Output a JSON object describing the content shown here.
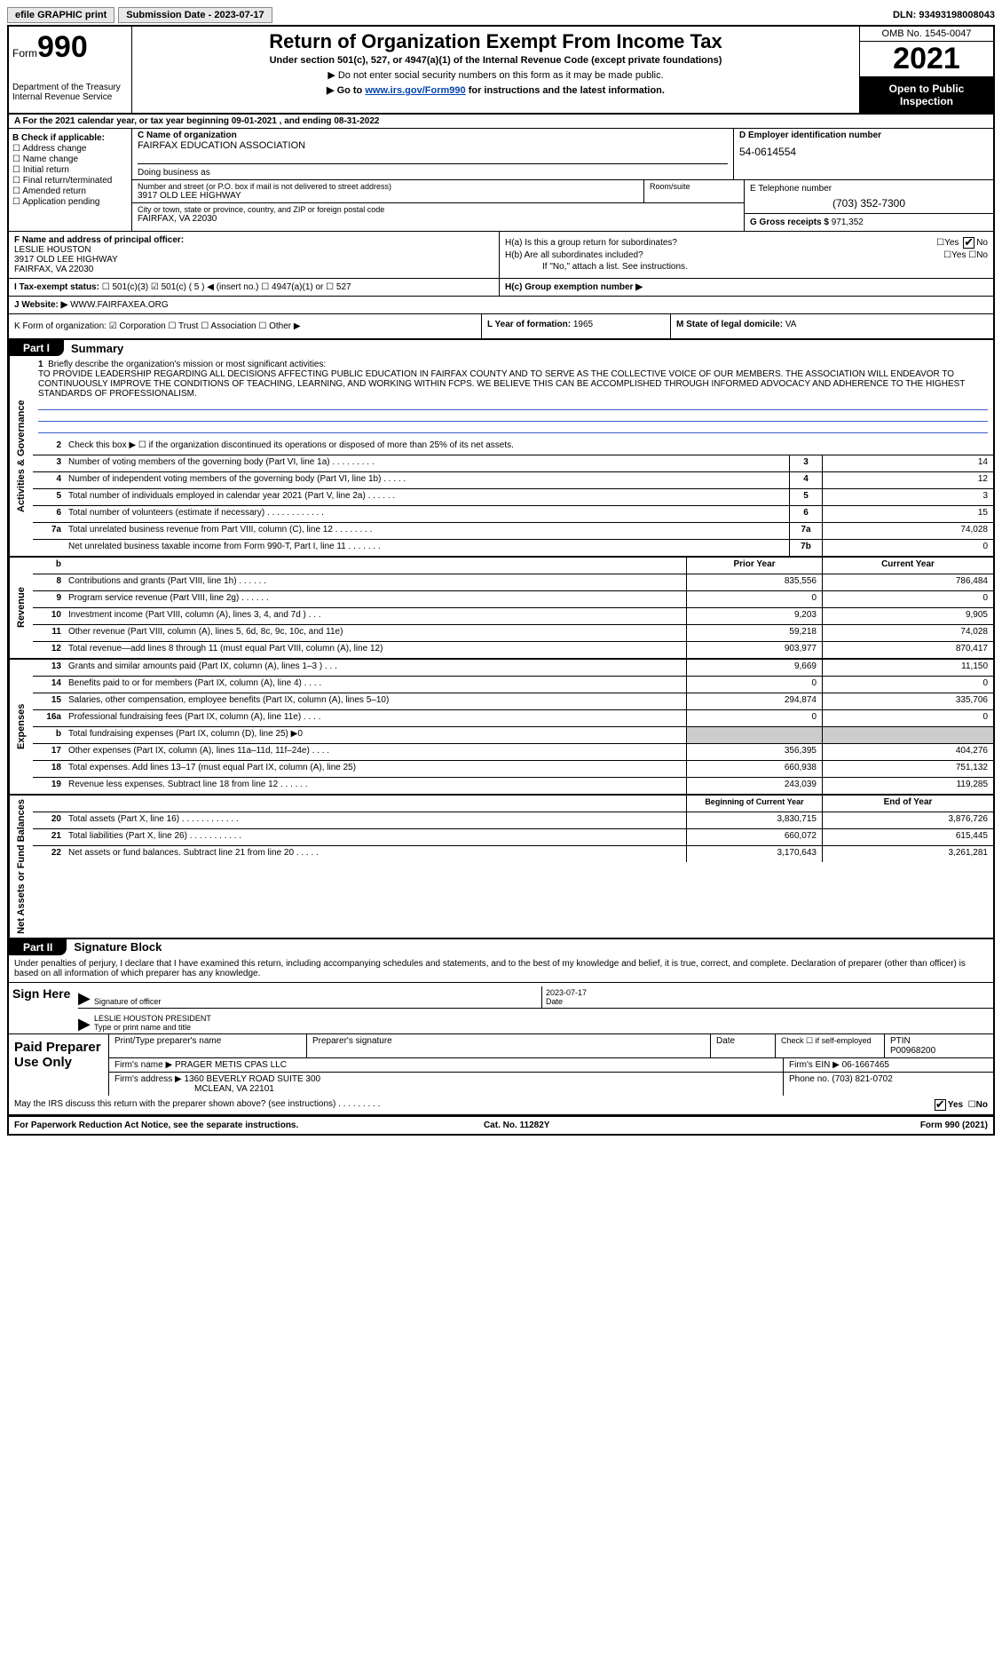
{
  "topbar": {
    "efile": "efile GRAPHIC print",
    "sub_label": "Submission Date - ",
    "sub_date": "2023-07-17",
    "dln_label": "DLN: ",
    "dln": "93493198008043"
  },
  "header": {
    "form_word": "Form",
    "form_num": "990",
    "dept": "Department of the Treasury\nInternal Revenue Service",
    "title": "Return of Organization Exempt From Income Tax",
    "sub": "Under section 501(c), 527, or 4947(a)(1) of the Internal Revenue Code (except private foundations)",
    "note1": "▶ Do not enter social security numbers on this form as it may be made public.",
    "note2_pre": "▶ Go to ",
    "note2_link": "www.irs.gov/Form990",
    "note2_post": " for instructions and the latest information.",
    "omb": "OMB No. 1545-0047",
    "year": "2021",
    "open": "Open to Public Inspection"
  },
  "rowA": "A For the 2021 calendar year, or tax year beginning 09-01-2021    , and ending 08-31-2022",
  "B": {
    "hdr": "B Check if applicable:",
    "items": [
      "☐ Address change",
      "☐ Name change",
      "☐ Initial return",
      "☐ Final return/terminated",
      "☐ Amended return",
      "☐ Application pending"
    ]
  },
  "C": {
    "name_lbl": "C Name of organization",
    "name": "FAIRFAX EDUCATION ASSOCIATION",
    "dba_lbl": "Doing business as",
    "addr_lbl": "Number and street (or P.O. box if mail is not delivered to street address)",
    "addr": "3917 OLD LEE HIGHWAY",
    "room_lbl": "Room/suite",
    "city_lbl": "City or town, state or province, country, and ZIP or foreign postal code",
    "city": "FAIRFAX, VA  22030"
  },
  "D": {
    "lbl": "D Employer identification number",
    "val": "54-0614554"
  },
  "E": {
    "lbl": "E Telephone number",
    "val": "(703) 352-7300"
  },
  "G": {
    "lbl": "G Gross receipts $ ",
    "val": "971,352"
  },
  "F": {
    "lbl": "F  Name and address of principal officer:",
    "name": "LESLIE HOUSTON",
    "addr1": "3917 OLD LEE HIGHWAY",
    "addr2": "FAIRFAX, VA  22030"
  },
  "H": {
    "a": "H(a)  Is this a group return for subordinates?",
    "b": "H(b)  Are all subordinates included?",
    "b_note": "If \"No,\" attach a list. See instructions.",
    "c": "H(c)  Group exemption number ▶",
    "yes": "Yes",
    "no": "No"
  },
  "I": {
    "lbl": "I    Tax-exempt status:",
    "opts": "☐ 501(c)(3)   ☑ 501(c) ( 5 ) ◀ (insert no.)   ☐ 4947(a)(1) or   ☐ 527"
  },
  "J": {
    "lbl": "J   Website: ▶ ",
    "val": "WWW.FAIRFAXEA.ORG"
  },
  "K": {
    "lbl": "K Form of organization:  ☑ Corporation  ☐ Trust  ☐ Association  ☐ Other ▶"
  },
  "L": {
    "lbl": "L Year of formation: ",
    "val": "1965"
  },
  "M": {
    "lbl": "M State of legal domicile: ",
    "val": "VA"
  },
  "part1": {
    "tab": "Part I",
    "title": "Summary"
  },
  "mission": {
    "num": "1",
    "lbl": "Briefly describe the organization's mission or most significant activities:",
    "text": "TO PROVIDE LEADERSHIP REGARDING ALL DECISIONS AFFECTING PUBLIC EDUCATION IN FAIRFAX COUNTY AND TO SERVE AS THE COLLECTIVE VOICE OF OUR MEMBERS. THE ASSOCIATION WILL ENDEAVOR TO CONTINUOUSLY IMPROVE THE CONDITIONS OF TEACHING, LEARNING, AND WORKING WITHIN FCPS. WE BELIEVE THIS CAN BE ACCOMPLISHED THROUGH INFORMED ADVOCACY AND ADHERENCE TO THE HIGHEST STANDARDS OF PROFESSIONALISM."
  },
  "gov_lines": [
    {
      "n": "2",
      "t": "Check this box ▶ ☐  if the organization discontinued its operations or disposed of more than 25% of its net assets.",
      "ref": "",
      "v": ""
    },
    {
      "n": "3",
      "t": "Number of voting members of the governing body (Part VI, line 1a)   .    .    .    .    .    .    .    .    .",
      "ref": "3",
      "v": "14"
    },
    {
      "n": "4",
      "t": "Number of independent voting members of the governing body (Part VI, line 1b)    .    .    .    .    .",
      "ref": "4",
      "v": "12"
    },
    {
      "n": "5",
      "t": "Total number of individuals employed in calendar year 2021 (Part V, line 2a)    .    .    .    .    .    .",
      "ref": "5",
      "v": "3"
    },
    {
      "n": "6",
      "t": "Total number of volunteers (estimate if necessary)    .    .    .    .    .    .    .    .    .    .    .    .",
      "ref": "6",
      "v": "15"
    },
    {
      "n": "7a",
      "t": "Total unrelated business revenue from Part VIII, column (C), line 12    .    .    .    .    .    .    .    .",
      "ref": "7a",
      "v": "74,028"
    },
    {
      "n": "",
      "t": "Net unrelated business taxable income from Form 990-T, Part I, line 11    .    .    .    .    .    .    .",
      "ref": "7b",
      "v": "0"
    }
  ],
  "rev_hdr_py": "Prior Year",
  "rev_hdr_cy": "Current Year",
  "rev_lines": [
    {
      "n": "8",
      "t": "Contributions and grants (Part VIII, line 1h)   .    .    .    .    .    .",
      "py": "835,556",
      "cy": "786,484"
    },
    {
      "n": "9",
      "t": "Program service revenue (Part VIII, line 2g)    .    .    .    .    .    .",
      "py": "0",
      "cy": "0"
    },
    {
      "n": "10",
      "t": "Investment income (Part VIII, column (A), lines 3, 4, and 7d )   .    .    .",
      "py": "9,203",
      "cy": "9,905"
    },
    {
      "n": "11",
      "t": "Other revenue (Part VIII, column (A), lines 5, 6d, 8c, 9c, 10c, and 11e)",
      "py": "59,218",
      "cy": "74,028"
    },
    {
      "n": "12",
      "t": "Total revenue—add lines 8 through 11 (must equal Part VIII, column (A), line 12)",
      "py": "903,977",
      "cy": "870,417"
    }
  ],
  "exp_lines": [
    {
      "n": "13",
      "t": "Grants and similar amounts paid (Part IX, column (A), lines 1–3 )  .    .    .",
      "py": "9,669",
      "cy": "11,150"
    },
    {
      "n": "14",
      "t": "Benefits paid to or for members (Part IX, column (A), line 4)   .    .    .    .",
      "py": "0",
      "cy": "0"
    },
    {
      "n": "15",
      "t": "Salaries, other compensation, employee benefits (Part IX, column (A), lines 5–10)",
      "py": "294,874",
      "cy": "335,706"
    },
    {
      "n": "16a",
      "t": "Professional fundraising fees (Part IX, column (A), line 11e)    .    .    .    .",
      "py": "0",
      "cy": "0"
    },
    {
      "n": "b",
      "t": "Total fundraising expenses (Part IX, column (D), line 25) ▶0",
      "py": "SHADE",
      "cy": "SHADE"
    },
    {
      "n": "17",
      "t": "Other expenses (Part IX, column (A), lines 11a–11d, 11f–24e)    .    .    .    .",
      "py": "356,395",
      "cy": "404,276"
    },
    {
      "n": "18",
      "t": "Total expenses. Add lines 13–17 (must equal Part IX, column (A), line 25)",
      "py": "660,938",
      "cy": "751,132"
    },
    {
      "n": "19",
      "t": "Revenue less expenses. Subtract line 18 from line 12   .    .    .    .    .    .",
      "py": "243,039",
      "cy": "119,285"
    }
  ],
  "net_hdr_py": "Beginning of Current Year",
  "net_hdr_cy": "End of Year",
  "net_lines": [
    {
      "n": "20",
      "t": "Total assets (Part X, line 16)   .    .    .    .    .    .    .    .    .    .    .    .",
      "py": "3,830,715",
      "cy": "3,876,726"
    },
    {
      "n": "21",
      "t": "Total liabilities (Part X, line 26)   .    .    .    .    .    .    .    .    .    .    .",
      "py": "660,072",
      "cy": "615,445"
    },
    {
      "n": "22",
      "t": "Net assets or fund balances. Subtract line 21 from line 20   .    .    .    .    .",
      "py": "3,170,643",
      "cy": "3,261,281"
    }
  ],
  "vtabs": {
    "gov": "Activities & Governance",
    "rev": "Revenue",
    "exp": "Expenses",
    "net": "Net Assets or Fund Balances"
  },
  "part2": {
    "tab": "Part II",
    "title": "Signature Block"
  },
  "sig": {
    "decl": "Under penalties of perjury, I declare that I have examined this return, including accompanying schedules and statements, and to the best of my knowledge and belief, it is true, correct, and complete. Declaration of preparer (other than officer) is based on all information of which preparer has any knowledge.",
    "sign_here": "Sign Here",
    "sig_officer_lbl": "Signature of officer",
    "date_lbl": "Date",
    "date": "2023-07-17",
    "typed_name": "LESLIE HOUSTON  PRESIDENT",
    "typed_lbl": "Type or print name and title"
  },
  "prep": {
    "hdr": "Paid Preparer Use Only",
    "c1": "Print/Type preparer's name",
    "c2": "Preparer's signature",
    "c3": "Date",
    "c4_lbl": "Check ☐ if self-employed",
    "ptin_lbl": "PTIN",
    "ptin": "P00968200",
    "firm_name_lbl": "Firm's name    ▶ ",
    "firm_name": "PRAGER METIS CPAS LLC",
    "firm_ein_lbl": "Firm's EIN ▶ ",
    "firm_ein": "06-1667465",
    "firm_addr_lbl": "Firm's address ▶ ",
    "firm_addr1": "1360 BEVERLY ROAD SUITE 300",
    "firm_addr2": "MCLEAN, VA  22101",
    "phone_lbl": "Phone no. ",
    "phone": "(703) 821-0702"
  },
  "discuss": {
    "q": "May the IRS discuss this return with the preparer shown above? (see instructions)   .    .    .    .    .    .    .    .    .",
    "yes": "Yes",
    "no": "No"
  },
  "footer": {
    "l": "For Paperwork Reduction Act Notice, see the separate instructions.",
    "m": "Cat. No. 11282Y",
    "r": "Form 990 (2021)"
  }
}
